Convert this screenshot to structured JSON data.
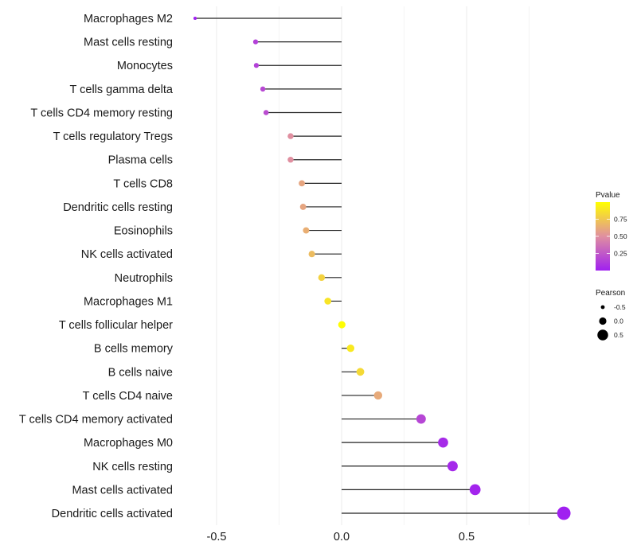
{
  "chart_data": {
    "type": "scatter",
    "subtype": "lollipop",
    "title": "",
    "xlabel": "",
    "ylabel": "",
    "xlim": [
      -0.63,
      0.93
    ],
    "x_ticks": [
      -0.5,
      0.0,
      0.5
    ],
    "x_tick_labels": [
      "-0.5",
      "0.0",
      "0.5"
    ],
    "x_minor_grid": [
      -0.25,
      0.25,
      0.75
    ],
    "grid": true,
    "categories": [
      "Macrophages M2",
      "Mast cells resting",
      "Monocytes",
      "T cells gamma delta",
      "T cells CD4 memory resting",
      "T cells regulatory  Tregs ",
      "Plasma cells",
      "T cells CD8",
      "Dendritic cells resting",
      "Eosinophils",
      "NK cells activated",
      "Neutrophils",
      "Macrophages M1",
      "T cells follicular helper",
      "B cells memory",
      "B cells naive",
      "T cells CD4 naive",
      "T cells CD4 memory activated",
      "Macrophages M0",
      "NK cells resting",
      "Mast cells activated",
      "Dendritic cells activated"
    ],
    "series": [
      {
        "name": "Pearson",
        "values": [
          -0.586,
          -0.344,
          -0.341,
          -0.315,
          -0.302,
          -0.204,
          -0.204,
          -0.159,
          -0.154,
          -0.142,
          -0.119,
          -0.08,
          -0.055,
          0.001,
          0.036,
          0.075,
          0.146,
          0.318,
          0.406,
          0.444,
          0.534,
          0.889
        ]
      },
      {
        "name": "Pvalue",
        "values": [
          0.0,
          0.15,
          0.15,
          0.18,
          0.2,
          0.5,
          0.5,
          0.6,
          0.6,
          0.64,
          0.7,
          0.8,
          0.88,
          0.99,
          0.9,
          0.83,
          0.62,
          0.17,
          0.05,
          0.04,
          0.02,
          0.0
        ]
      }
    ],
    "color_legend": {
      "title": "Pvalue",
      "ticks": [
        0.25,
        0.5,
        0.75
      ],
      "tick_labels": [
        "0.25",
        "0.50",
        "0.75"
      ],
      "range": [
        0.0,
        1.0
      ],
      "low_color": "#A020F0",
      "mid_color": "#E08FA0",
      "high_color": "#FFFF00"
    },
    "size_legend": {
      "title": "Pearson",
      "entries": [
        {
          "label": "-0.5",
          "value": -0.5
        },
        {
          "label": "0.0",
          "value": 0.0
        },
        {
          "label": "0.5",
          "value": 0.5
        }
      ]
    },
    "legend_position": "right"
  }
}
